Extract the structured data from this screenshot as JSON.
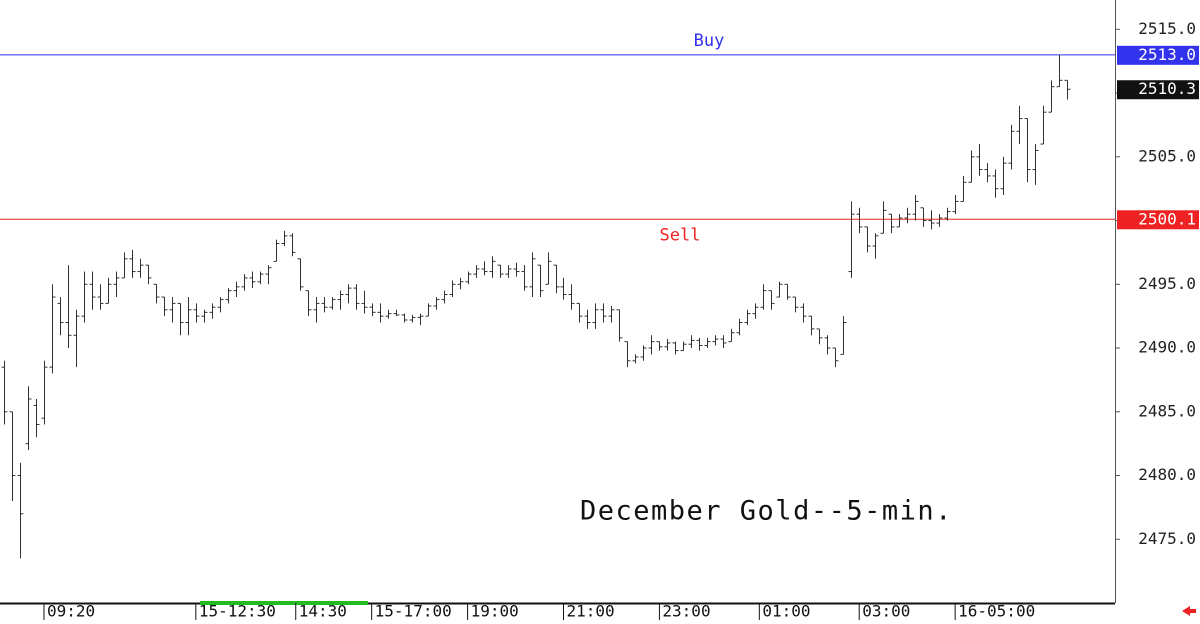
{
  "chart_data": {
    "type": "ohlc",
    "title": "December Gold--5-min.",
    "ylim": [
      2470,
      2517.3
    ],
    "xlim": [
      -0.5,
      139
    ],
    "yticks": [
      {
        "value": 2475,
        "label": "2475.0"
      },
      {
        "value": 2480,
        "label": "2480.0"
      },
      {
        "value": 2485,
        "label": "2485.0"
      },
      {
        "value": 2490,
        "label": "2490.0"
      },
      {
        "value": 2495,
        "label": "2495.0"
      },
      {
        "value": 2500,
        "label": "2500.0"
      },
      {
        "value": 2505,
        "label": "2505.0"
      },
      {
        "value": 2510,
        "label": "2510.0"
      },
      {
        "value": 2515,
        "label": "2515.0"
      }
    ],
    "xticks": [
      {
        "value": 5,
        "label": "09:20"
      },
      {
        "value": 24,
        "label": "15-12:30"
      },
      {
        "value": 36.5,
        "label": "14:30"
      },
      {
        "value": 46,
        "label": "15-17:00"
      },
      {
        "value": 58,
        "label": "19:00"
      },
      {
        "value": 70,
        "label": "21:00"
      },
      {
        "value": 82,
        "label": "23:00"
      },
      {
        "value": 94.5,
        "label": "01:00"
      },
      {
        "value": 107,
        "label": "03:00"
      },
      {
        "value": 119,
        "label": "16-05:00"
      }
    ],
    "bar_color": "#333333",
    "levels": [
      {
        "name": "Buy",
        "value": 2513.0,
        "label": "2513.0",
        "color": "#3333ee"
      },
      {
        "name": "Sell",
        "value": 2500.1,
        "label": "2500.1",
        "color": "#ee2222"
      }
    ],
    "last_color": "#111111",
    "high": [
      2489,
      2485,
      2481,
      2487,
      2486,
      2489,
      2495,
      2494,
      2496.5,
      2493,
      2496,
      2496,
      2495,
      2495.5,
      2496,
      2497.5,
      2497.7,
      2497,
      2496.5,
      2495,
      2494,
      2494,
      2493.5,
      2494,
      2493.5,
      2493,
      2493.5,
      2494,
      2494.7,
      2495.2,
      2495.8,
      2496,
      2496,
      2496.5,
      2498.5,
      2499.2,
      2499,
      2497,
      2494.5,
      2494,
      2494,
      2494,
      2494.5,
      2495,
      2495,
      2494.5,
      2493.5,
      2493.5,
      2493,
      2493,
      2492.7,
      2492.6,
      2492.7,
      2493.5,
      2494,
      2494.5,
      2495.3,
      2495.5,
      2496,
      2496.5,
      2496.8,
      2497.2,
      2496.5,
      2496.5,
      2496.7,
      2496.5,
      2497.5,
      2496.5,
      2497.5,
      2496.5,
      2495.5,
      2495,
      2493.5,
      2493,
      2493.5,
      2493.5,
      2493.3,
      2493,
      2490.5,
      2489.5,
      2490.2,
      2491,
      2490.5,
      2490.7,
      2490.5,
      2490.5,
      2491,
      2490.8,
      2490.8,
      2491,
      2491,
      2491.5,
      2492.3,
      2493,
      2493.5,
      2495,
      2494.5,
      2495.2,
      2495,
      2494,
      2493.5,
      2492.5,
      2491.5,
      2491,
      2490,
      2492.5,
      2501.5,
      2501,
      2499.5,
      2499,
      2501.5,
      2500.5,
      2500.5,
      2501,
      2502,
      2501,
      2500.8,
      2500.5,
      2501,
      2502,
      2503.5,
      2505.5,
      2506,
      2504.5,
      2504,
      2505,
      2507.5,
      2509,
      2508,
      2506,
      2509,
      2511,
      2513,
      2511
    ],
    "low": [
      2484,
      2478,
      2473.5,
      2482,
      2483,
      2484,
      2488,
      2491,
      2490,
      2488.5,
      2492,
      2493,
      2493,
      2493.5,
      2494,
      2495.5,
      2495.5,
      2495.5,
      2495,
      2493.5,
      2492.5,
      2492,
      2491,
      2491,
      2492,
      2492,
      2492.3,
      2492.8,
      2493.5,
      2494,
      2494.5,
      2494.7,
      2495,
      2495,
      2496.8,
      2498,
      2497.2,
      2494.5,
      2492.5,
      2492,
      2492.8,
      2493,
      2493,
      2493.5,
      2493,
      2492.7,
      2492.5,
      2492,
      2492.3,
      2492.5,
      2492,
      2492,
      2491.8,
      2492.5,
      2493,
      2493.5,
      2494,
      2494.6,
      2495,
      2495.5,
      2495.7,
      2495.5,
      2495.5,
      2495.5,
      2495.6,
      2494.5,
      2494,
      2494,
      2495,
      2494.3,
      2493.8,
      2493,
      2492,
      2491.5,
      2491.5,
      2492,
      2492,
      2490.5,
      2488.5,
      2488.8,
      2489,
      2489.5,
      2489.8,
      2489.8,
      2489.5,
      2489.8,
      2490,
      2489.8,
      2490,
      2490.2,
      2490,
      2490.5,
      2491,
      2491.8,
      2492.3,
      2493,
      2493,
      2494,
      2493.8,
      2492.8,
      2492,
      2491,
      2490.3,
      2489.5,
      2488.5,
      2489.5,
      2495.5,
      2499,
      2497.5,
      2497,
      2499,
      2499,
      2499.5,
      2499.8,
      2500,
      2499.5,
      2499.3,
      2499.5,
      2500,
      2500.5,
      2501.5,
      2503,
      2503.5,
      2503,
      2501.8,
      2502,
      2504,
      2506,
      2503,
      2502.8,
      2506,
      2508.5,
      2510.5,
      2509.5
    ],
    "open": [
      2488.5,
      2485,
      2480,
      2482.5,
      2485.5,
      2484.5,
      2488.5,
      2493.5,
      2492,
      2491,
      2492.5,
      2495,
      2494,
      2493.5,
      2495,
      2495.5,
      2497,
      2496,
      2496.5,
      2495,
      2494,
      2493,
      2493.5,
      2492,
      2493,
      2492.5,
      2492.8,
      2493.2,
      2493.8,
      2494.5,
      2494.8,
      2495.5,
      2495.2,
      2495.8,
      2496.8,
      2498.2,
      2498.8,
      2497,
      2494.5,
      2493,
      2493.5,
      2493.2,
      2493.8,
      2494.2,
      2494.7,
      2493.5,
      2493.2,
      2492.8,
      2492.5,
      2492.7,
      2492.6,
      2492.2,
      2492.4,
      2492.5,
      2493.3,
      2493.8,
      2494.2,
      2495,
      2495.2,
      2495.8,
      2496.2,
      2496,
      2496.5,
      2495.8,
      2496.2,
      2496,
      2494.8,
      2496.5,
      2495,
      2496.5,
      2494.8,
      2494.2,
      2493.5,
      2492.5,
      2492,
      2493,
      2492.5,
      2493,
      2490.5,
      2489,
      2489.3,
      2490,
      2490.5,
      2490.1,
      2490.4,
      2489.8,
      2490.3,
      2490.6,
      2490.2,
      2490.5,
      2490.7,
      2490.5,
      2491.2,
      2492,
      2492.7,
      2493.2,
      2494.5,
      2494,
      2495,
      2494,
      2493.2,
      2492.5,
      2491.5,
      2490.8,
      2490,
      2489.5,
      2496,
      2500.5,
      2499.5,
      2498,
      2499,
      2500.5,
      2499.5,
      2500.2,
      2500.5,
      2501,
      2500,
      2499.8,
      2500.2,
      2500.7,
      2501.5,
      2503,
      2505,
      2504,
      2503.5,
      2502.5,
      2504.5,
      2507,
      2508,
      2504,
      2506,
      2508.5,
      2510.5,
      2511
    ],
    "close": [
      2485,
      2480,
      2477,
      2486,
      2484,
      2488.5,
      2494,
      2492,
      2491,
      2492.5,
      2495,
      2494,
      2493.5,
      2495,
      2495.5,
      2497,
      2496,
      2496.5,
      2495.5,
      2494,
      2493,
      2493.5,
      2492,
      2493,
      2492.5,
      2492.8,
      2493.2,
      2493.8,
      2494.5,
      2494.8,
      2495.5,
      2495.2,
      2495.8,
      2496.3,
      2498.2,
      2498.8,
      2497.5,
      2494.8,
      2493,
      2493.5,
      2493.2,
      2493.8,
      2494.2,
      2494.7,
      2493.5,
      2493.2,
      2492.8,
      2492.5,
      2492.7,
      2492.6,
      2492.2,
      2492.4,
      2492.5,
      2493.3,
      2493.8,
      2494.2,
      2495,
      2495.2,
      2495.8,
      2496.2,
      2496,
      2496.8,
      2495.8,
      2496.2,
      2496,
      2494.8,
      2497,
      2494.5,
      2496.8,
      2494.8,
      2494.2,
      2493.5,
      2492.5,
      2492,
      2493,
      2492.5,
      2493,
      2490.8,
      2489,
      2489.3,
      2490,
      2490.5,
      2490.1,
      2490.4,
      2489.8,
      2490.3,
      2490.6,
      2490.2,
      2490.5,
      2490.7,
      2490.4,
      2491.2,
      2492,
      2492.7,
      2493.2,
      2494.5,
      2493.5,
      2495,
      2494,
      2493.2,
      2492.5,
      2491.5,
      2490.8,
      2490,
      2489,
      2492,
      2500.5,
      2499.5,
      2498,
      2498.8,
      2500.8,
      2499.5,
      2500.2,
      2500.5,
      2501.5,
      2500,
      2499.8,
      2500.2,
      2500.7,
      2501.5,
      2503,
      2505,
      2504,
      2503.5,
      2502.5,
      2504.5,
      2507,
      2508,
      2504,
      2505.5,
      2508.5,
      2510.5,
      2511,
      2510.3
    ]
  }
}
